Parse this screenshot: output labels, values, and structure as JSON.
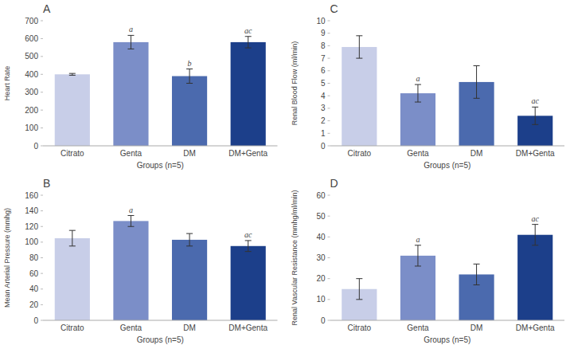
{
  "chart_data": [
    {
      "type": "bar",
      "title": "A",
      "ylabel": "Heart Rate",
      "xlabel": "Groups (n=5)",
      "categories": [
        "Citrato",
        "Genta",
        "DM",
        "DM+Genta"
      ],
      "values": [
        400,
        580,
        390,
        580
      ],
      "errors": [
        5,
        38,
        40,
        32
      ],
      "annotations": [
        null,
        "a",
        "b",
        "ac"
      ],
      "colors": [
        "#c8cee8",
        "#7b8ec8",
        "#4b6aae",
        "#1c3f8a"
      ],
      "ylim": [
        0,
        700
      ],
      "yticks": [
        0,
        100,
        200,
        300,
        400,
        500,
        600,
        700
      ],
      "grid": false
    },
    {
      "type": "bar",
      "title": "C",
      "ylabel": "Renal Blood Flow (ml/min)",
      "xlabel": "Groups (n=5)",
      "categories": [
        "Citrato",
        "Genta",
        "DM",
        "DM+Genta"
      ],
      "values": [
        7.9,
        4.2,
        5.1,
        2.4
      ],
      "errors": [
        0.9,
        0.7,
        1.3,
        0.7
      ],
      "annotations": [
        null,
        "a",
        null,
        "ac"
      ],
      "colors": [
        "#c8cee8",
        "#7b8ec8",
        "#4b6aae",
        "#1c3f8a"
      ],
      "ylim": [
        0,
        10
      ],
      "yticks": [
        0,
        1,
        2,
        3,
        4,
        5,
        6,
        7,
        8,
        9,
        10
      ],
      "grid": false
    },
    {
      "type": "bar",
      "title": "B",
      "ylabel": "Mean Arterial Pressure (mmhg)",
      "xlabel": "Groups (n=5)",
      "categories": [
        "Citrato",
        "Genta",
        "DM",
        "DM+Genta"
      ],
      "values": [
        105,
        127,
        103,
        95
      ],
      "errors": [
        10,
        7,
        8,
        7
      ],
      "annotations": [
        null,
        "a",
        null,
        "ac"
      ],
      "colors": [
        "#c8cee8",
        "#7b8ec8",
        "#4b6aae",
        "#1c3f8a"
      ],
      "ylim": [
        0,
        160
      ],
      "yticks": [
        0,
        20,
        40,
        60,
        80,
        100,
        120,
        140,
        160
      ],
      "grid": false
    },
    {
      "type": "bar",
      "title": "D",
      "ylabel": "Renal Vascular Resistance (mmhg/ml/min)",
      "xlabel": "Groups (n=5)",
      "categories": [
        "Citrato",
        "Genta",
        "DM",
        "DM+Genta"
      ],
      "values": [
        15,
        31,
        22,
        41
      ],
      "errors": [
        5,
        5,
        5,
        5
      ],
      "annotations": [
        null,
        "a",
        null,
        "ac"
      ],
      "colors": [
        "#c8cee8",
        "#7b8ec8",
        "#4b6aae",
        "#1c3f8a"
      ],
      "ylim": [
        0,
        60
      ],
      "yticks": [
        0,
        10,
        20,
        30,
        40,
        50,
        60
      ],
      "grid": false
    }
  ]
}
